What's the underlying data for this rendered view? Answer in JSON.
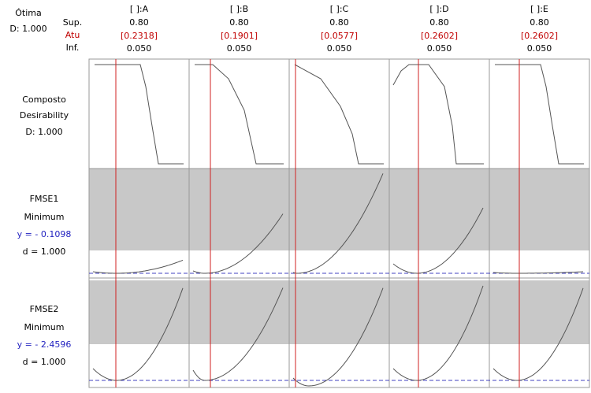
{
  "header": {
    "optimal": "Ótima",
    "d_label": "D: 1.000",
    "row_labels": [
      "Sup.",
      "Atu",
      "Inf."
    ]
  },
  "columns": [
    {
      "label": "[ ]:A",
      "high": "0.80",
      "current": "[0.2318]",
      "low": "0.050"
    },
    {
      "label": "[ ]:B",
      "high": "0.80",
      "current": "[0.1901]",
      "low": "0.050"
    },
    {
      "label": "[ ]:C",
      "high": "0.80",
      "current": "[0.0577]",
      "low": "0.050"
    },
    {
      "label": "[ ]:D",
      "high": "0.80",
      "current": "[0.2602]",
      "low": "0.050"
    },
    {
      "label": "[ ]:E",
      "high": "0.80",
      "current": "[0.2602]",
      "low": "0.050"
    }
  ],
  "rows": [
    {
      "lines": [
        "Composto",
        "Desirability",
        "D:  1.000"
      ]
    },
    {
      "lines": [
        "FMSE1",
        "Minimum",
        "y = - 0.1098",
        "d =  1.000"
      ]
    },
    {
      "lines": [
        "FMSE2",
        "Minimum",
        "y = - 2.4596",
        "d =  1.000"
      ]
    }
  ]
}
